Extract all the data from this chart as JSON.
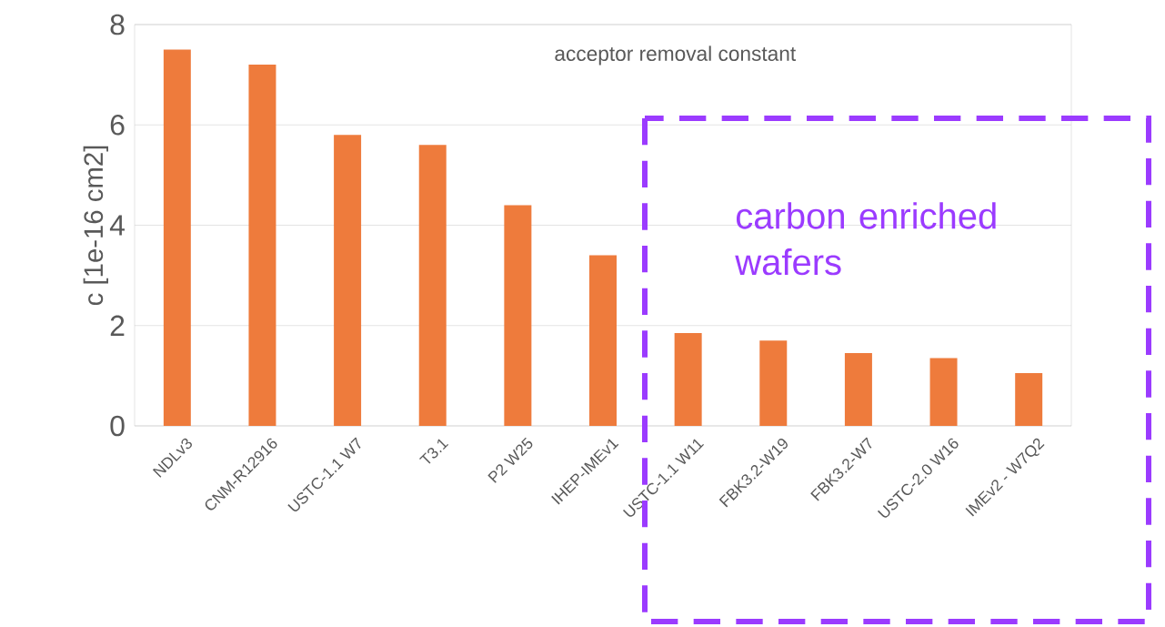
{
  "chart_data": {
    "type": "bar",
    "title": "acceptor removal constant",
    "ylabel": "c [1e-16 cm2]",
    "categories": [
      "NDLv3",
      "CNM-R12916",
      "USTC-1.1 W7",
      "T3.1",
      "P2 W25",
      "IHEP-IMEv1",
      "USTC-1.1 W11",
      "FBK3.2-W19",
      "FBK3.2-W7",
      "USTC-2.0 W16",
      "IMEv2 - W7Q2"
    ],
    "values": [
      7.5,
      7.2,
      5.8,
      5.6,
      4.4,
      3.4,
      1.85,
      1.7,
      1.45,
      1.35,
      1.05
    ],
    "color": "#ee7b3c",
    "ylim": [
      0,
      8
    ],
    "yticks": [
      0,
      2,
      4,
      6,
      8
    ],
    "grid": "y",
    "annotations": [
      "carbon enriched wafers"
    ]
  }
}
